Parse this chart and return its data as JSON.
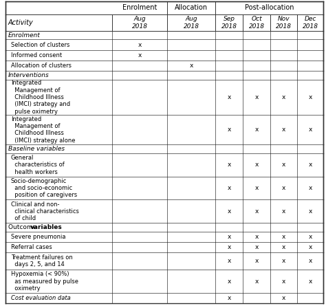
{
  "col_headers_top": [
    "",
    "Enrolment",
    "Allocation",
    "Post-allocation"
  ],
  "col_headers_sub": [
    "Activity",
    "Aug\n2018",
    "Aug\n2018",
    "Sep\n2018",
    "Oct\n2018",
    "Nov\n2018",
    "Dec\n2018"
  ],
  "rows": [
    {
      "label": "Enrolment",
      "type": "section_italic",
      "values": [
        "",
        "",
        "",
        "",
        "",
        ""
      ]
    },
    {
      "label": "  Selection of clusters",
      "type": "data",
      "italic": false,
      "values": [
        "x",
        "",
        "",
        "",
        "",
        ""
      ]
    },
    {
      "label": "  Informed consent",
      "type": "data",
      "italic": false,
      "values": [
        "x",
        "",
        "",
        "",
        "",
        ""
      ]
    },
    {
      "label": "  Allocation of clusters",
      "type": "data",
      "italic": false,
      "values": [
        "",
        "x",
        "",
        "",
        "",
        ""
      ]
    },
    {
      "label": "Interventions",
      "type": "section_italic",
      "values": [
        "",
        "",
        "",
        "",
        "",
        ""
      ]
    },
    {
      "label": "  Integrated\n  Management of\n  Childhood Illness\n  (IMCI) strategy and\n  pulse oximetry",
      "type": "data_multi5",
      "italic": false,
      "values": [
        "",
        "",
        "x",
        "x",
        "x",
        "x"
      ]
    },
    {
      "label": "  Integrated\n  Management of\n  Childhood Illness\n  (IMCI) strategy alone",
      "type": "data_multi4",
      "italic": false,
      "values": [
        "",
        "",
        "x",
        "x",
        "x",
        "x"
      ]
    },
    {
      "label": "Baseline variables",
      "type": "section_italic",
      "values": [
        "",
        "",
        "",
        "",
        "",
        ""
      ]
    },
    {
      "label": "  General\n  characteristics of\n  health workers",
      "type": "data_multi3",
      "italic": false,
      "values": [
        "",
        "",
        "x",
        "x",
        "x",
        "x"
      ]
    },
    {
      "label": "  Socio-demographic\n  and socio-economic\n  position of caregivers",
      "type": "data_multi3",
      "italic": false,
      "values": [
        "",
        "",
        "x",
        "x",
        "x",
        "x"
      ]
    },
    {
      "label": "  Clinical and non-\n  clinical characteristics\n  of child",
      "type": "data_multi3",
      "italic": false,
      "values": [
        "",
        "",
        "x",
        "x",
        "x",
        "x"
      ]
    },
    {
      "label": "Outcome variables",
      "type": "section_mixed_bold",
      "values": [
        "",
        "",
        "",
        "",
        "",
        ""
      ]
    },
    {
      "label": "  Severe pneumonia",
      "type": "data",
      "italic": false,
      "values": [
        "",
        "",
        "x",
        "x",
        "x",
        "x"
      ]
    },
    {
      "label": "  Referral cases",
      "type": "data",
      "italic": false,
      "values": [
        "",
        "",
        "x",
        "x",
        "x",
        "x"
      ]
    },
    {
      "label": "  Treatment failures on\n  days 2, 5, and 14",
      "type": "data_multi2",
      "italic": false,
      "values": [
        "",
        "",
        "x",
        "x",
        "x",
        "x"
      ]
    },
    {
      "label": "  Hypoxemia (< 90%)\n  as measured by pulse\n  oximetry",
      "type": "data_multi3",
      "italic": false,
      "values": [
        "",
        "",
        "x",
        "x",
        "x",
        "x"
      ]
    },
    {
      "label": "  Cost evaluation data",
      "type": "data_italic",
      "italic": true,
      "values": [
        "",
        "",
        "x",
        "",
        "x",
        ""
      ]
    }
  ],
  "bg_color": "#ffffff",
  "line_color": "#333333",
  "text_color": "#000000"
}
